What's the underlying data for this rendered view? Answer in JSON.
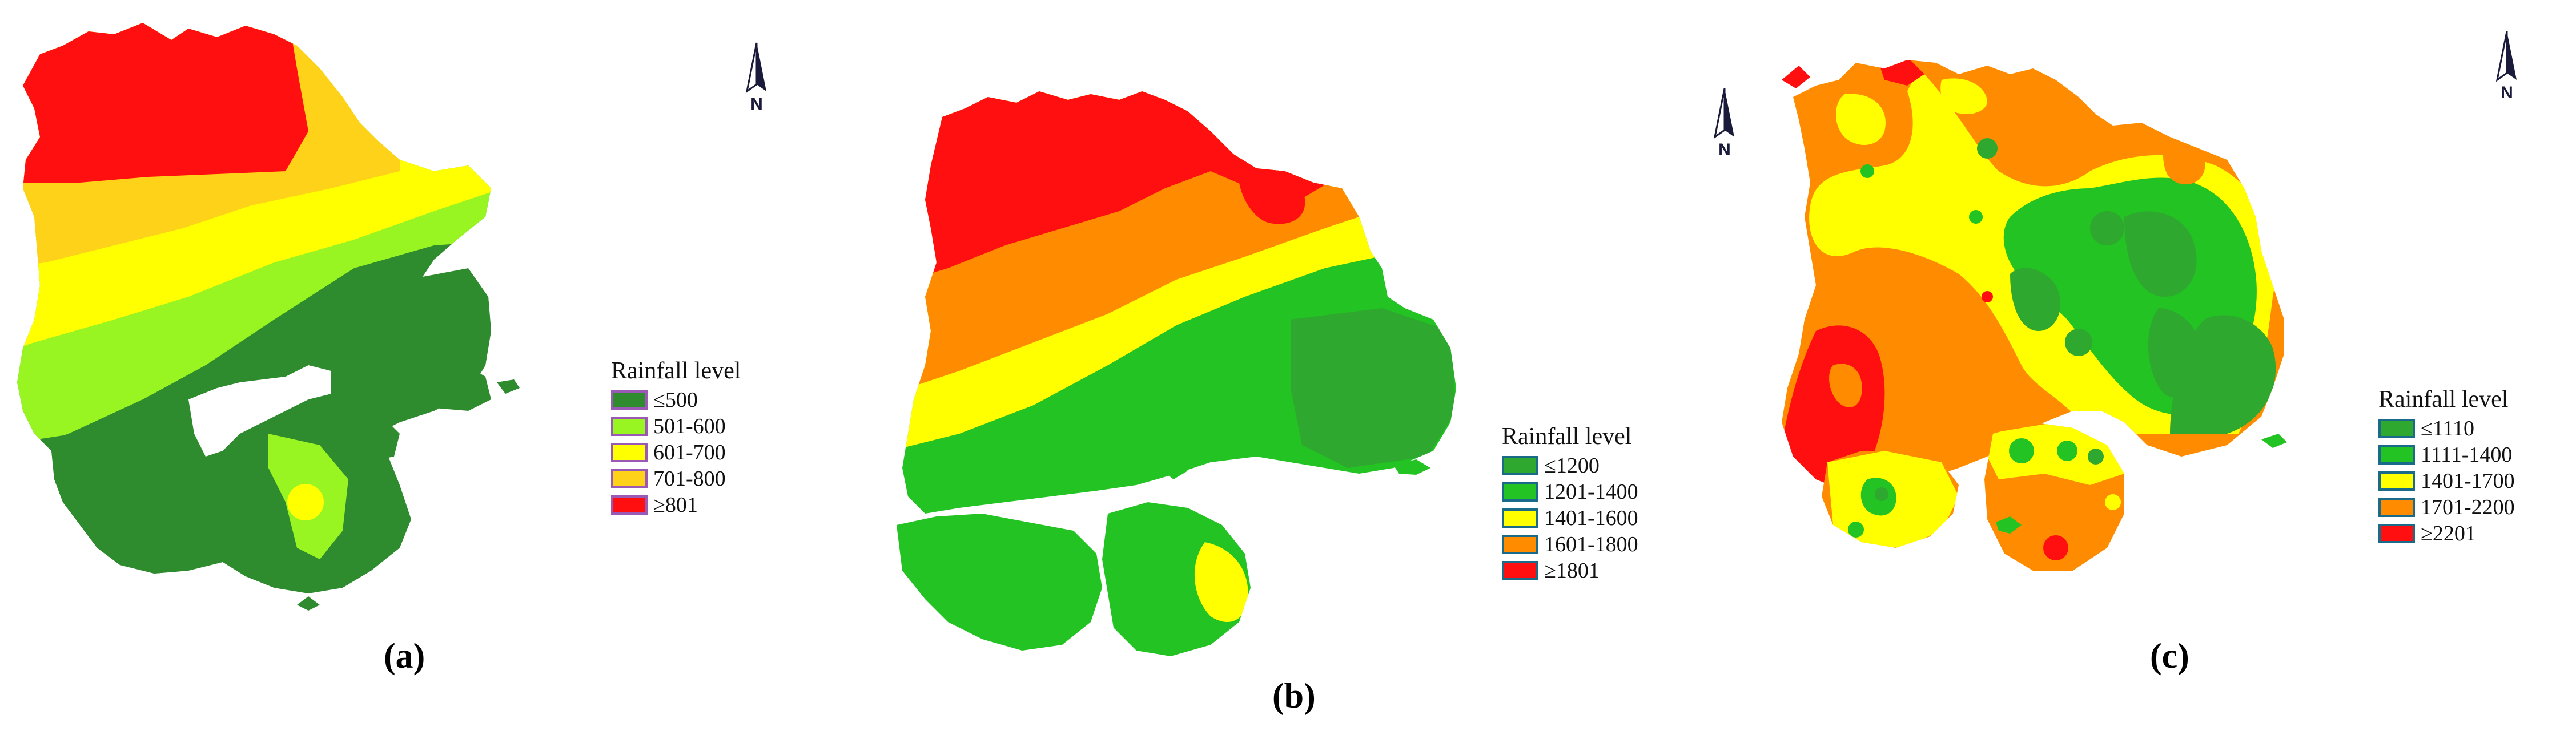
{
  "colors": {
    "dark_green": "#2e8b2e",
    "green": "#22c322",
    "light_green": "#99f522",
    "yellow": "#ffff00",
    "yellow_orange": "#ffd21a",
    "orange": "#ff8c00",
    "red": "#ff0f0f"
  },
  "panels": [
    {
      "caption": "(a)",
      "north_label": "N",
      "legend": {
        "title": "Rainfall level",
        "swatch_border": "#9b59b6",
        "items": [
          {
            "label": "≤500",
            "color": "#2e8b2e"
          },
          {
            "label": "501-600",
            "color": "#99f522"
          },
          {
            "label": "601-700",
            "color": "#ffff00"
          },
          {
            "label": "701-800",
            "color": "#ffd21a"
          },
          {
            "label": "≥801",
            "color": "#ff0f0f"
          }
        ]
      }
    },
    {
      "caption": "(b)",
      "north_label": "N",
      "legend": {
        "title": "Rainfall level",
        "swatch_border": "#1a6b8a",
        "items": [
          {
            "label": "≤1200",
            "color": "#2ea82e"
          },
          {
            "label": "1201-1400",
            "color": "#22c322"
          },
          {
            "label": "1401-1600",
            "color": "#ffff00"
          },
          {
            "label": "1601-1800",
            "color": "#ff8c00"
          },
          {
            "label": "≥1801",
            "color": "#ff0f0f"
          }
        ]
      }
    },
    {
      "caption": "(c)",
      "north_label": "N",
      "legend": {
        "title": "Rainfall level",
        "swatch_border": "#1a6b8a",
        "items": [
          {
            "label": "≤1110",
            "color": "#2ea82e"
          },
          {
            "label": "1111-1400",
            "color": "#22c322"
          },
          {
            "label": "1401-1700",
            "color": "#ffff00"
          },
          {
            "label": "1701-2200",
            "color": "#ff8c00"
          },
          {
            "label": "≥2201",
            "color": "#ff0f0f"
          }
        ]
      }
    }
  ]
}
